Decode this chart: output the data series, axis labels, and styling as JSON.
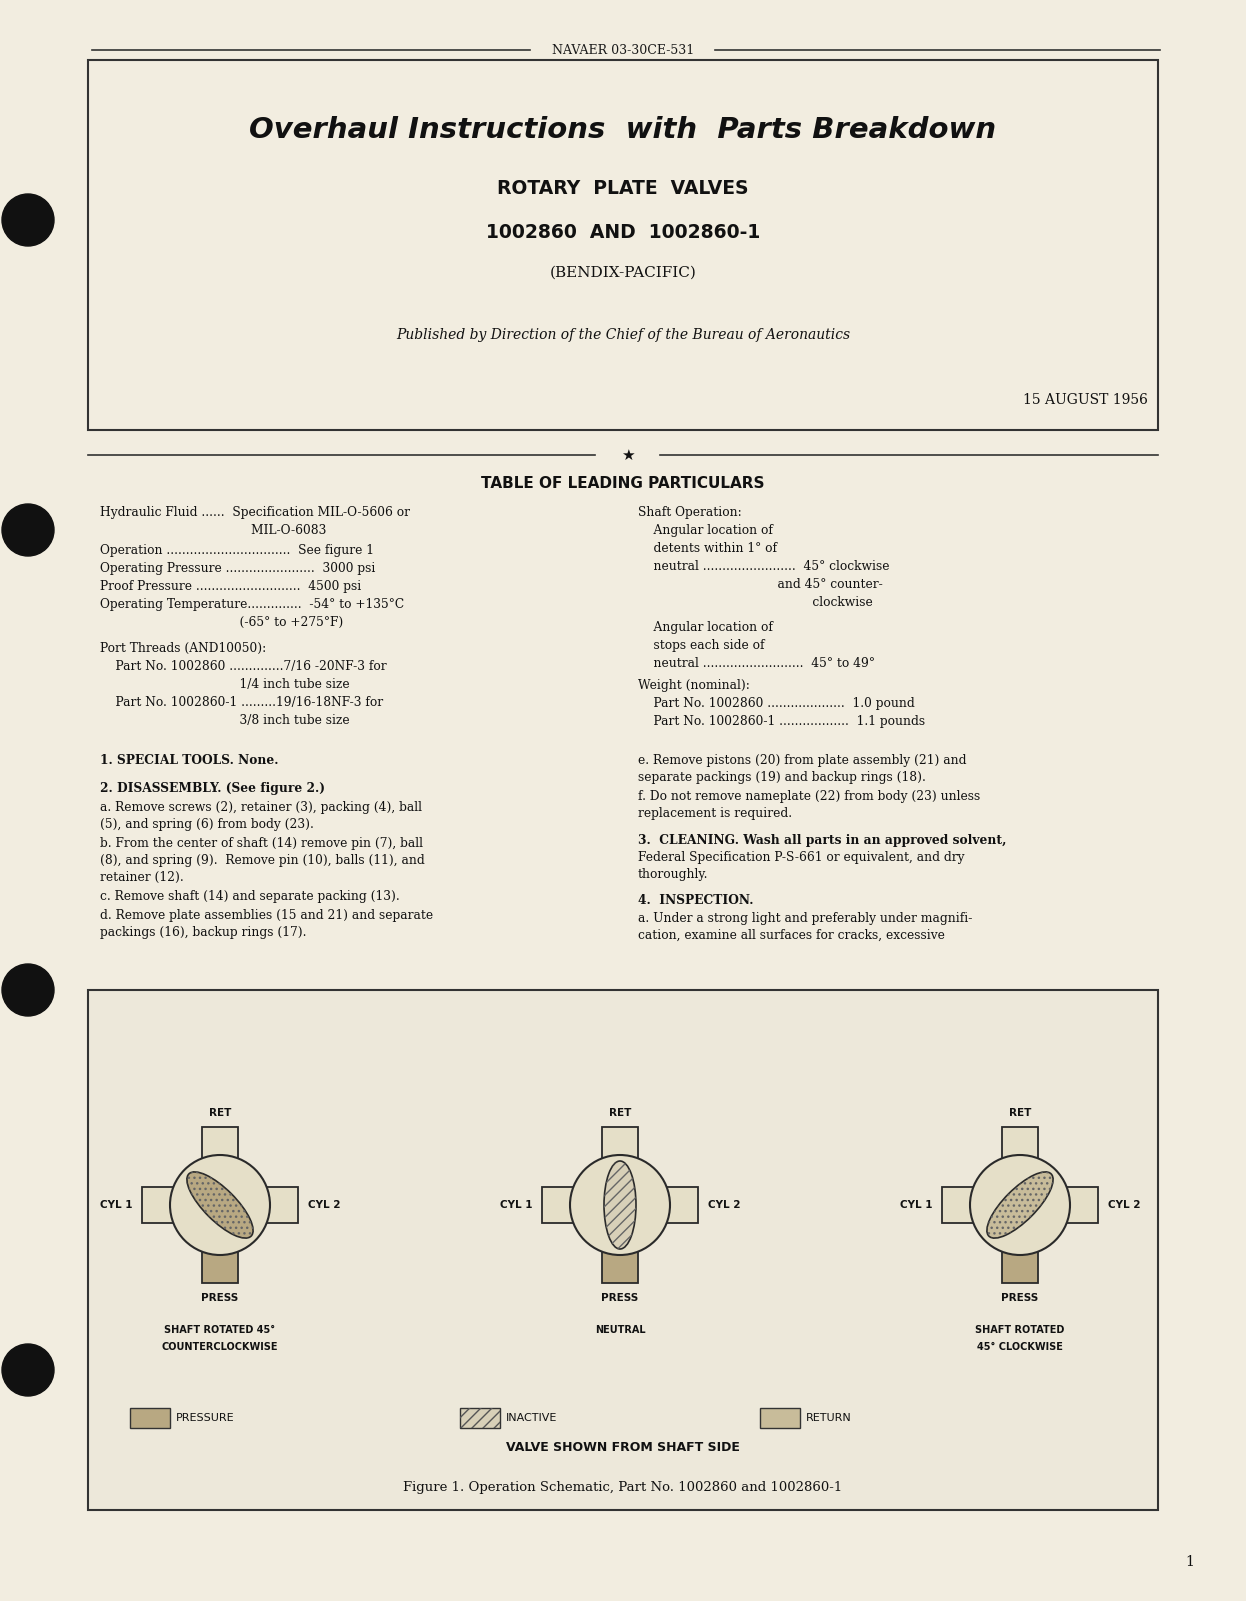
{
  "bg_color": "#f2ede0",
  "border_color": "#333333",
  "text_color": "#1a1a1a",
  "header_text": "NAVAER 03-30CE-531",
  "title_line1": "Overhaul Instructions with Parts Breakdown",
  "title_line2": "ROTARY  PLATE  VALVES",
  "title_line3": "1002860  AND  1002860-1",
  "title_line4": "(BENDIX-PACIFIC)",
  "published_by": "Published by Direction of the Chief of the Bureau of Aeronautics",
  "date": "15 AUGUST 1956",
  "table_title": "TABLE OF LEADING PARTICULARS",
  "figure_caption": "Figure 1. Operation Schematic, Part No. 1002860 and 1002860-1",
  "valve_shown_text": "VALVE SHOWN FROM SHAFT SIDE",
  "page_number": "1",
  "pressure_color": "#c8b898",
  "inactive_color": "#ddd5c0",
  "return_color": "#c8b898"
}
